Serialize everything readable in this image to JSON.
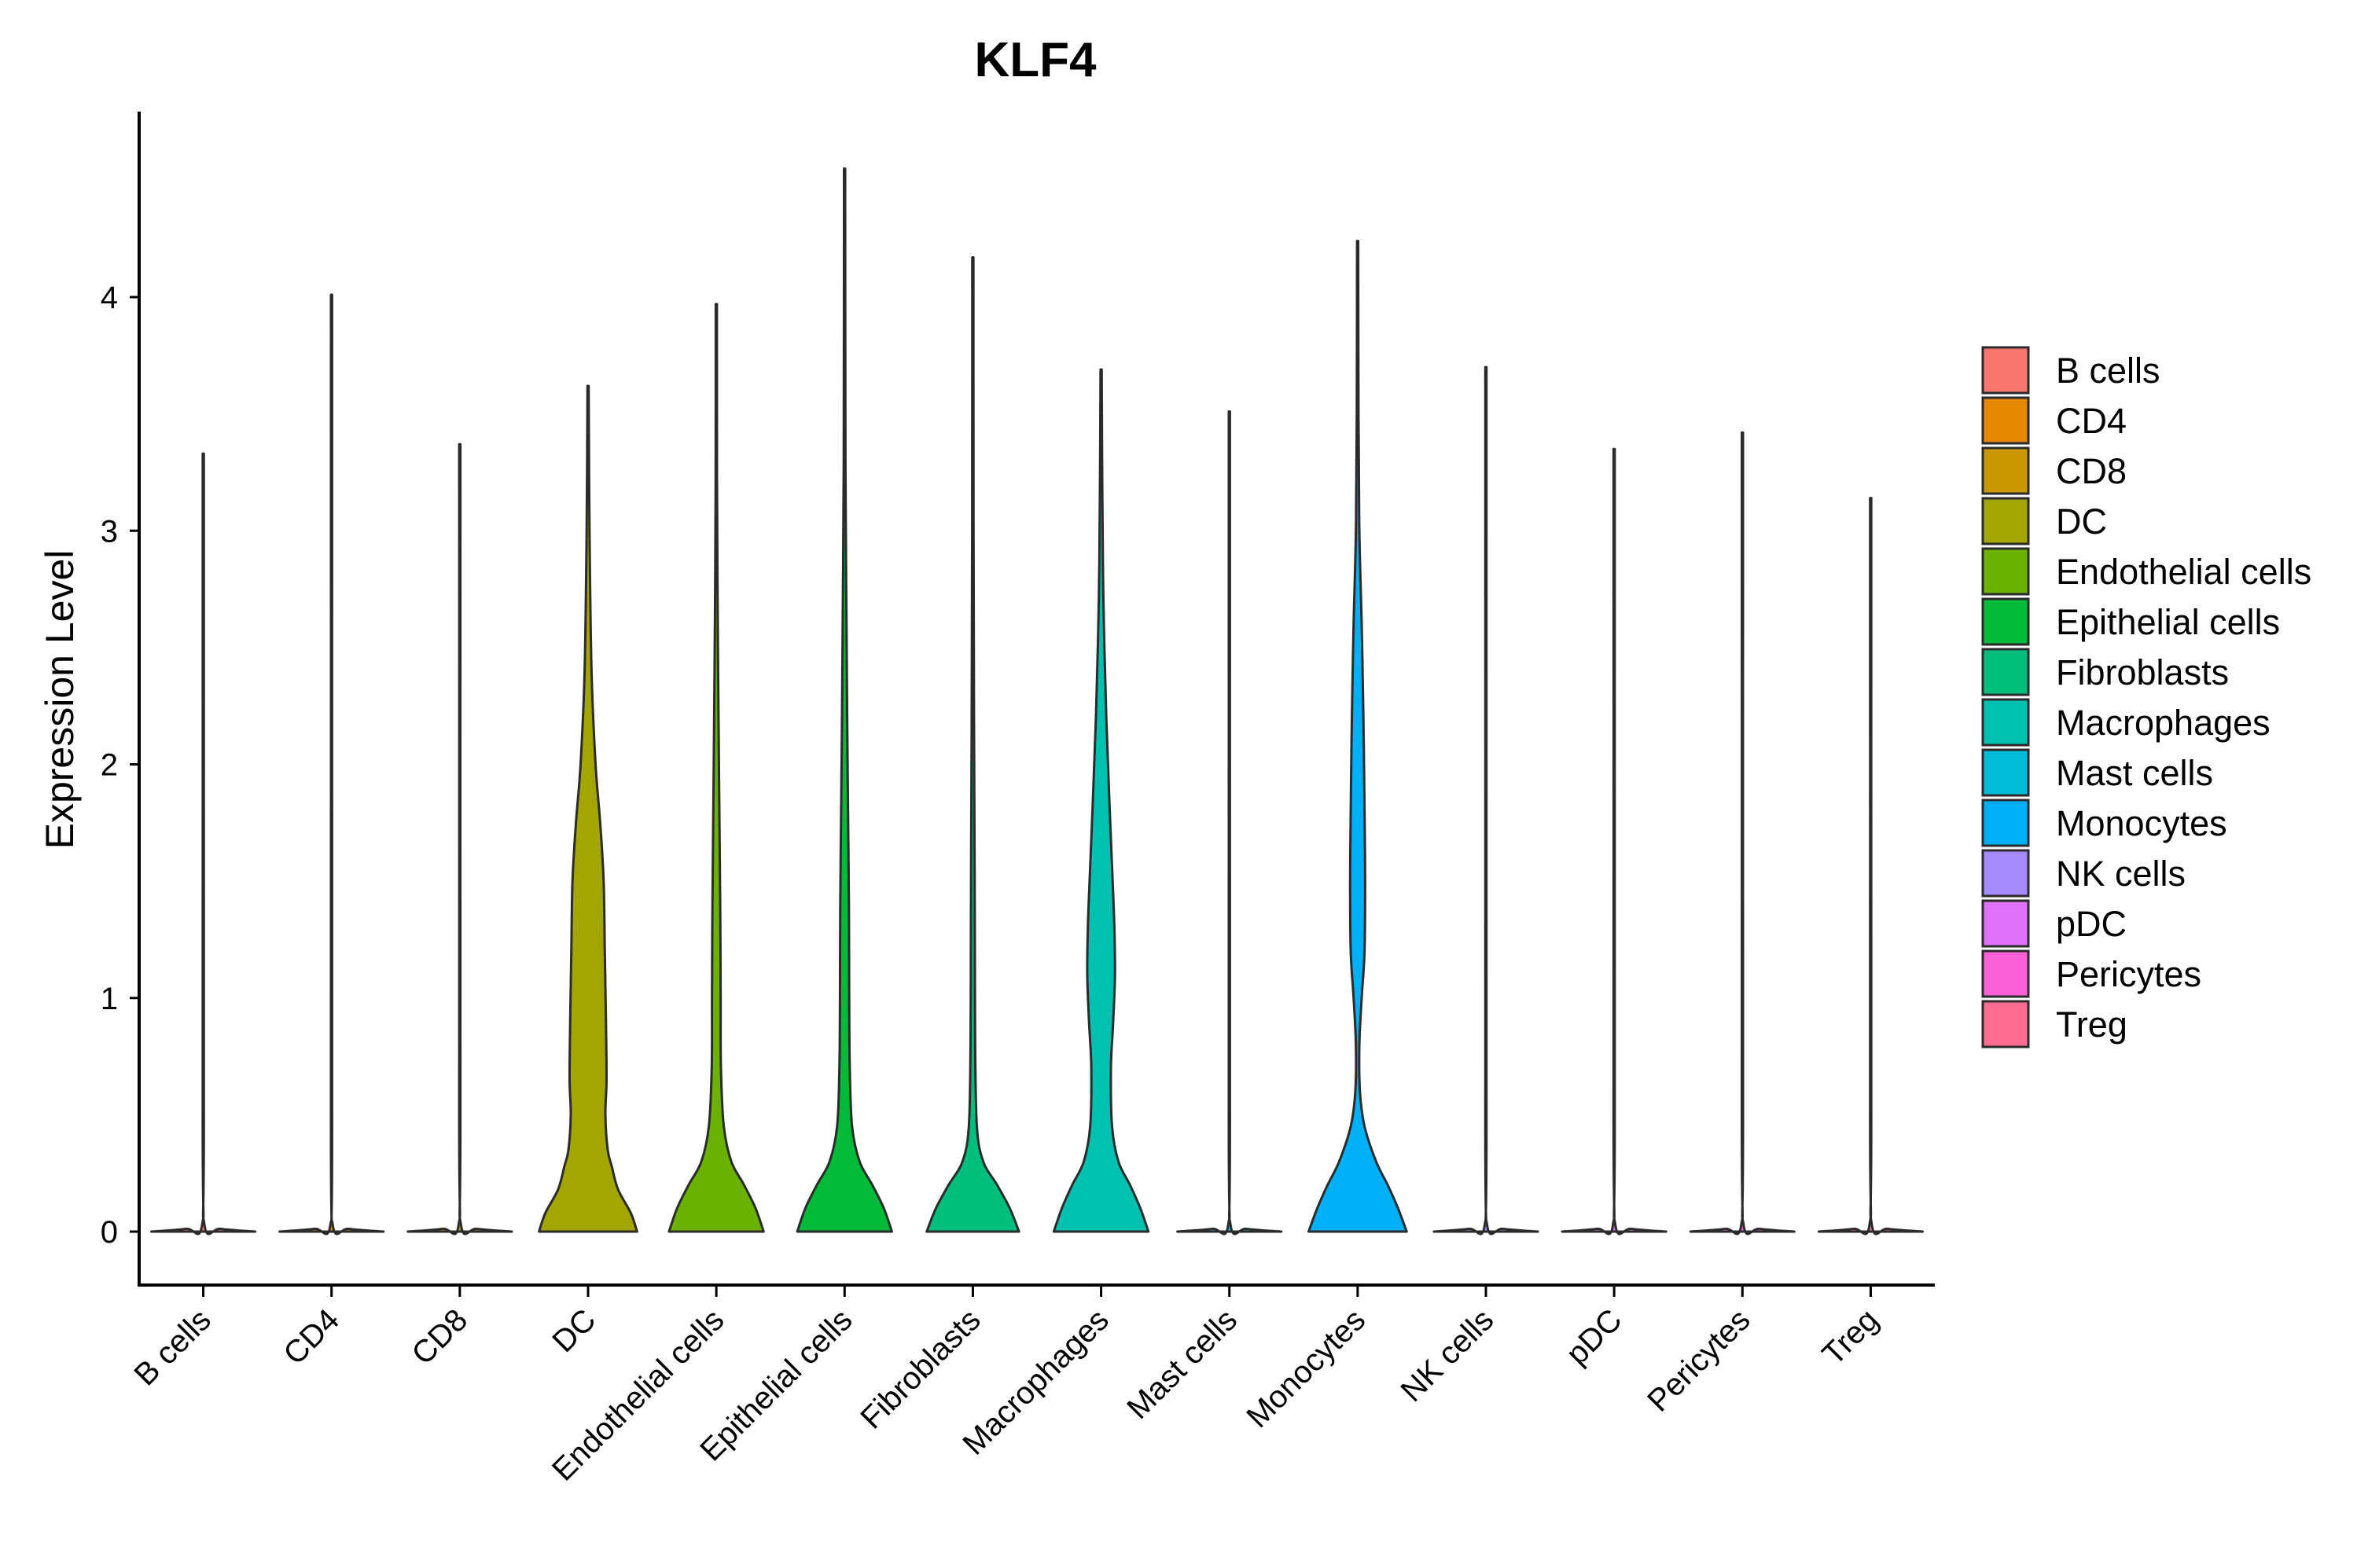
{
  "chart_data": {
    "type": "violin",
    "title": "KLF4",
    "xlabel": "",
    "ylabel": "Expression Level",
    "ylim": [
      -0.22,
      4.8
    ],
    "yticks": [
      0,
      1,
      2,
      3,
      4
    ],
    "ytick_labels": [
      "0",
      "1",
      "2",
      "3",
      "4"
    ],
    "grid": false,
    "legend_position": "right",
    "categories": [
      "B cells",
      "CD4",
      "CD8",
      "DC",
      "Endothelial cells",
      "Epithelial cells",
      "Fibroblasts",
      "Macrophages",
      "Mast cells",
      "Monocytes",
      "NK cells",
      "pDC",
      "Pericytes",
      "Treg"
    ],
    "colors": [
      "#F8766D",
      "#E58700",
      "#C99800",
      "#A3A500",
      "#6BB100",
      "#00BA38",
      "#00BF7D",
      "#00C0AF",
      "#00BCD8",
      "#00B0F6",
      "#A58AFF",
      "#DF70F8",
      "#FB61D7",
      "#FF6C91"
    ],
    "max_values": [
      3.33,
      4.01,
      3.37,
      3.62,
      3.97,
      4.55,
      4.17,
      3.69,
      3.51,
      4.24,
      3.7,
      3.35,
      3.42,
      3.14
    ],
    "density_profiles": [
      [
        [
          0,
          0.9
        ],
        [
          0.012,
          0.3
        ],
        [
          0.03,
          0.02
        ],
        [
          0.5,
          0.01
        ],
        [
          3.33,
          0.01
        ]
      ],
      [
        [
          0,
          0.9
        ],
        [
          0.012,
          0.3
        ],
        [
          0.03,
          0.02
        ],
        [
          0.5,
          0.01
        ],
        [
          4.01,
          0.01
        ]
      ],
      [
        [
          0,
          0.9
        ],
        [
          0.012,
          0.3
        ],
        [
          0.03,
          0.02
        ],
        [
          0.5,
          0.01
        ],
        [
          3.37,
          0.01
        ]
      ],
      [
        [
          0,
          0.85
        ],
        [
          0.08,
          0.74
        ],
        [
          0.18,
          0.52
        ],
        [
          0.28,
          0.41
        ],
        [
          0.35,
          0.34
        ],
        [
          0.5,
          0.3
        ],
        [
          0.65,
          0.32
        ],
        [
          0.9,
          0.31
        ],
        [
          1.2,
          0.29
        ],
        [
          1.5,
          0.27
        ],
        [
          1.75,
          0.21
        ],
        [
          2.0,
          0.13
        ],
        [
          2.4,
          0.06
        ],
        [
          3.0,
          0.025
        ],
        [
          3.62,
          0.01
        ]
      ],
      [
        [
          0,
          0.82
        ],
        [
          0.1,
          0.68
        ],
        [
          0.2,
          0.48
        ],
        [
          0.3,
          0.26
        ],
        [
          0.45,
          0.13
        ],
        [
          0.7,
          0.08
        ],
        [
          1.0,
          0.075
        ],
        [
          1.3,
          0.07
        ],
        [
          1.6,
          0.06
        ],
        [
          2.0,
          0.045
        ],
        [
          2.6,
          0.025
        ],
        [
          3.2,
          0.012
        ],
        [
          3.97,
          0.01
        ]
      ],
      [
        [
          0,
          0.82
        ],
        [
          0.1,
          0.68
        ],
        [
          0.2,
          0.48
        ],
        [
          0.3,
          0.26
        ],
        [
          0.45,
          0.13
        ],
        [
          0.7,
          0.09
        ],
        [
          1.0,
          0.08
        ],
        [
          1.4,
          0.075
        ],
        [
          1.8,
          0.06
        ],
        [
          2.2,
          0.045
        ],
        [
          2.7,
          0.03
        ],
        [
          3.3,
          0.015
        ],
        [
          4.55,
          0.01
        ]
      ],
      [
        [
          0,
          0.8
        ],
        [
          0.1,
          0.64
        ],
        [
          0.2,
          0.42
        ],
        [
          0.3,
          0.18
        ],
        [
          0.45,
          0.07
        ],
        [
          0.8,
          0.04
        ],
        [
          1.2,
          0.035
        ],
        [
          1.6,
          0.03
        ],
        [
          2.2,
          0.02
        ],
        [
          3.0,
          0.012
        ],
        [
          4.17,
          0.01
        ]
      ],
      [
        [
          0,
          0.82
        ],
        [
          0.1,
          0.68
        ],
        [
          0.2,
          0.5
        ],
        [
          0.3,
          0.3
        ],
        [
          0.45,
          0.19
        ],
        [
          0.7,
          0.17
        ],
        [
          0.9,
          0.21
        ],
        [
          1.1,
          0.24
        ],
        [
          1.3,
          0.23
        ],
        [
          1.5,
          0.2
        ],
        [
          1.8,
          0.15
        ],
        [
          2.2,
          0.09
        ],
        [
          2.7,
          0.04
        ],
        [
          3.2,
          0.02
        ],
        [
          3.69,
          0.01
        ]
      ],
      [
        [
          0,
          0.9
        ],
        [
          0.012,
          0.3
        ],
        [
          0.03,
          0.02
        ],
        [
          0.5,
          0.01
        ],
        [
          3.51,
          0.01
        ]
      ],
      [
        [
          0,
          0.85
        ],
        [
          0.1,
          0.7
        ],
        [
          0.2,
          0.52
        ],
        [
          0.3,
          0.32
        ],
        [
          0.45,
          0.12
        ],
        [
          0.6,
          0.04
        ],
        [
          0.8,
          0.03
        ],
        [
          1.0,
          0.07
        ],
        [
          1.2,
          0.12
        ],
        [
          1.5,
          0.13
        ],
        [
          1.8,
          0.12
        ],
        [
          2.2,
          0.1
        ],
        [
          2.6,
          0.07
        ],
        [
          3.0,
          0.03
        ],
        [
          3.5,
          0.015
        ],
        [
          4.24,
          0.01
        ]
      ],
      [
        [
          0,
          0.9
        ],
        [
          0.012,
          0.3
        ],
        [
          0.03,
          0.02
        ],
        [
          0.5,
          0.01
        ],
        [
          3.7,
          0.01
        ]
      ],
      [
        [
          0,
          0.9
        ],
        [
          0.012,
          0.3
        ],
        [
          0.03,
          0.02
        ],
        [
          0.5,
          0.01
        ],
        [
          3.35,
          0.01
        ]
      ],
      [
        [
          0,
          0.9
        ],
        [
          0.012,
          0.3
        ],
        [
          0.03,
          0.02
        ],
        [
          0.5,
          0.01
        ],
        [
          3.42,
          0.01
        ]
      ],
      [
        [
          0,
          0.9
        ],
        [
          0.012,
          0.3
        ],
        [
          0.03,
          0.02
        ],
        [
          0.5,
          0.01
        ],
        [
          3.14,
          0.01
        ]
      ]
    ],
    "legend": [
      "B cells",
      "CD4",
      "CD8",
      "DC",
      "Endothelial cells",
      "Epithelial cells",
      "Fibroblasts",
      "Macrophages",
      "Mast cells",
      "Monocytes",
      "NK cells",
      "pDC",
      "Pericytes",
      "Treg"
    ]
  }
}
